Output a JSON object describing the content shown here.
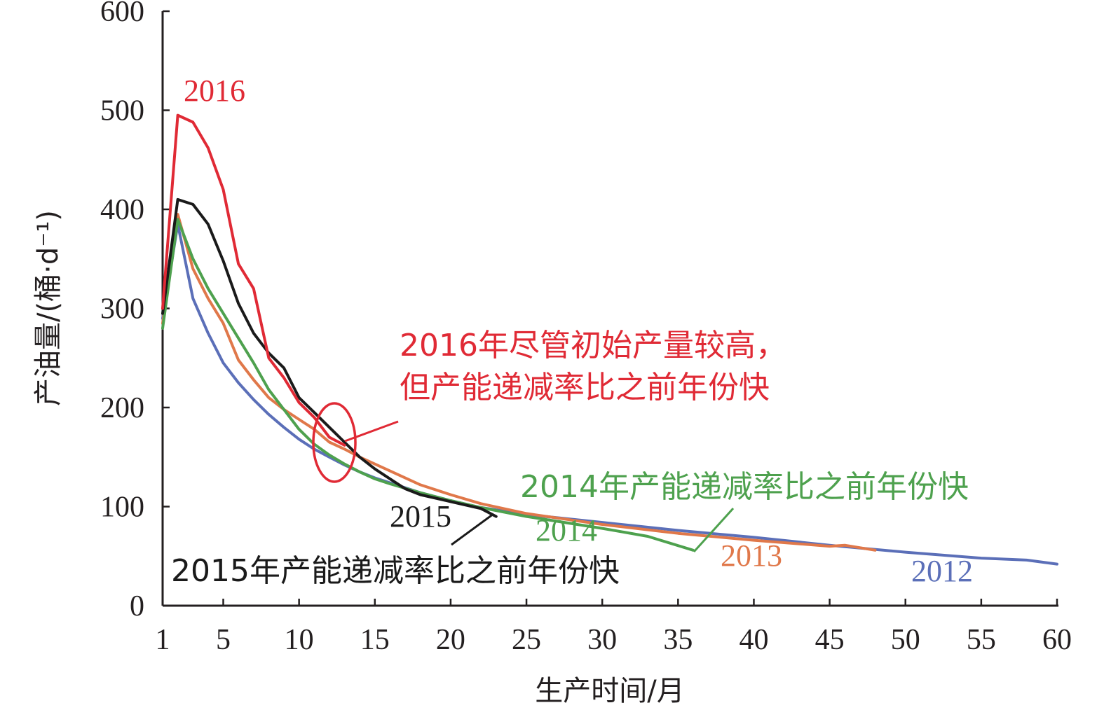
{
  "chart_data": {
    "type": "line",
    "xlabel": "生产时间/月",
    "ylabel": "产油量/(桶·d⁻¹)",
    "xlim": [
      1,
      60
    ],
    "ylim": [
      0,
      600
    ],
    "x_ticks": [
      1,
      5,
      10,
      15,
      20,
      25,
      30,
      35,
      40,
      45,
      50,
      55,
      60
    ],
    "y_ticks": [
      0,
      100,
      200,
      300,
      400,
      500,
      600
    ],
    "grid": false,
    "series": [
      {
        "name": "2012",
        "color": "#5b6fb8",
        "points": [
          [
            1,
            290
          ],
          [
            2,
            385
          ],
          [
            3,
            310
          ],
          [
            4,
            275
          ],
          [
            5,
            245
          ],
          [
            6,
            225
          ],
          [
            7,
            208
          ],
          [
            8,
            193
          ],
          [
            9,
            180
          ],
          [
            10,
            168
          ],
          [
            11,
            158
          ],
          [
            12,
            150
          ],
          [
            13,
            142
          ],
          [
            14,
            135
          ],
          [
            15,
            129
          ],
          [
            16,
            124
          ],
          [
            18,
            114
          ],
          [
            20,
            106
          ],
          [
            22,
            99
          ],
          [
            25,
            92
          ],
          [
            30,
            84
          ],
          [
            35,
            76
          ],
          [
            40,
            69
          ],
          [
            45,
            61
          ],
          [
            50,
            54
          ],
          [
            55,
            48
          ],
          [
            58,
            46
          ],
          [
            60,
            42
          ]
        ]
      },
      {
        "name": "2013",
        "color": "#e0784a",
        "points": [
          [
            1,
            285
          ],
          [
            2,
            395
          ],
          [
            3,
            340
          ],
          [
            4,
            310
          ],
          [
            5,
            285
          ],
          [
            6,
            248
          ],
          [
            7,
            228
          ],
          [
            8,
            210
          ],
          [
            9,
            198
          ],
          [
            10,
            188
          ],
          [
            11,
            178
          ],
          [
            12,
            165
          ],
          [
            13,
            158
          ],
          [
            14,
            150
          ],
          [
            15,
            143
          ],
          [
            16,
            136
          ],
          [
            18,
            122
          ],
          [
            20,
            112
          ],
          [
            22,
            103
          ],
          [
            25,
            93
          ],
          [
            30,
            82
          ],
          [
            35,
            73
          ],
          [
            40,
            66
          ],
          [
            45,
            60
          ],
          [
            46,
            61
          ],
          [
            48,
            56
          ]
        ]
      },
      {
        "name": "2014",
        "color": "#4ea14e",
        "points": [
          [
            1,
            280
          ],
          [
            2,
            390
          ],
          [
            3,
            350
          ],
          [
            4,
            320
          ],
          [
            5,
            295
          ],
          [
            6,
            270
          ],
          [
            7,
            245
          ],
          [
            8,
            218
          ],
          [
            9,
            198
          ],
          [
            10,
            178
          ],
          [
            11,
            163
          ],
          [
            12,
            152
          ],
          [
            13,
            143
          ],
          [
            14,
            135
          ],
          [
            15,
            128
          ],
          [
            16,
            123
          ],
          [
            18,
            114
          ],
          [
            20,
            106
          ],
          [
            22,
            99
          ],
          [
            25,
            90
          ],
          [
            30,
            78
          ],
          [
            33,
            70
          ],
          [
            36,
            56
          ]
        ]
      },
      {
        "name": "2015",
        "color": "#1a1a1a",
        "points": [
          [
            1,
            295
          ],
          [
            2,
            410
          ],
          [
            3,
            405
          ],
          [
            4,
            385
          ],
          [
            5,
            348
          ],
          [
            6,
            305
          ],
          [
            7,
            275
          ],
          [
            8,
            255
          ],
          [
            9,
            240
          ],
          [
            10,
            210
          ],
          [
            11,
            195
          ],
          [
            12,
            180
          ],
          [
            13,
            165
          ],
          [
            14,
            150
          ],
          [
            15,
            138
          ],
          [
            16,
            128
          ],
          [
            17,
            118
          ],
          [
            18,
            112
          ],
          [
            20,
            105
          ],
          [
            22,
            98
          ],
          [
            23,
            90
          ]
        ]
      },
      {
        "name": "2016",
        "color": "#e02a35",
        "points": [
          [
            1,
            300
          ],
          [
            2,
            495
          ],
          [
            3,
            488
          ],
          [
            4,
            462
          ],
          [
            5,
            420
          ],
          [
            6,
            345
          ],
          [
            7,
            320
          ],
          [
            8,
            250
          ],
          [
            9,
            230
          ],
          [
            10,
            205
          ],
          [
            11,
            190
          ],
          [
            12,
            170
          ],
          [
            13,
            162
          ]
        ]
      }
    ],
    "annotations": [
      {
        "text": "2016",
        "color": "#e02a35"
      },
      {
        "text": "2015",
        "color": "#1a1a1a"
      },
      {
        "text": "2014",
        "color": "#4ea14e"
      },
      {
        "text": "2013",
        "color": "#e0784a"
      },
      {
        "text": "2012",
        "color": "#5b6fb8"
      },
      {
        "line1": "2016年尽管初始产量较高，",
        "line2": "但产能递减率比之前年份快",
        "color": "#e02a35"
      },
      {
        "text": "2014年产能递减率比之前年份快",
        "color": "#4ea14e"
      },
      {
        "text": "2015年产能递减率比之前年份快",
        "color": "#1a1a1a"
      }
    ]
  }
}
